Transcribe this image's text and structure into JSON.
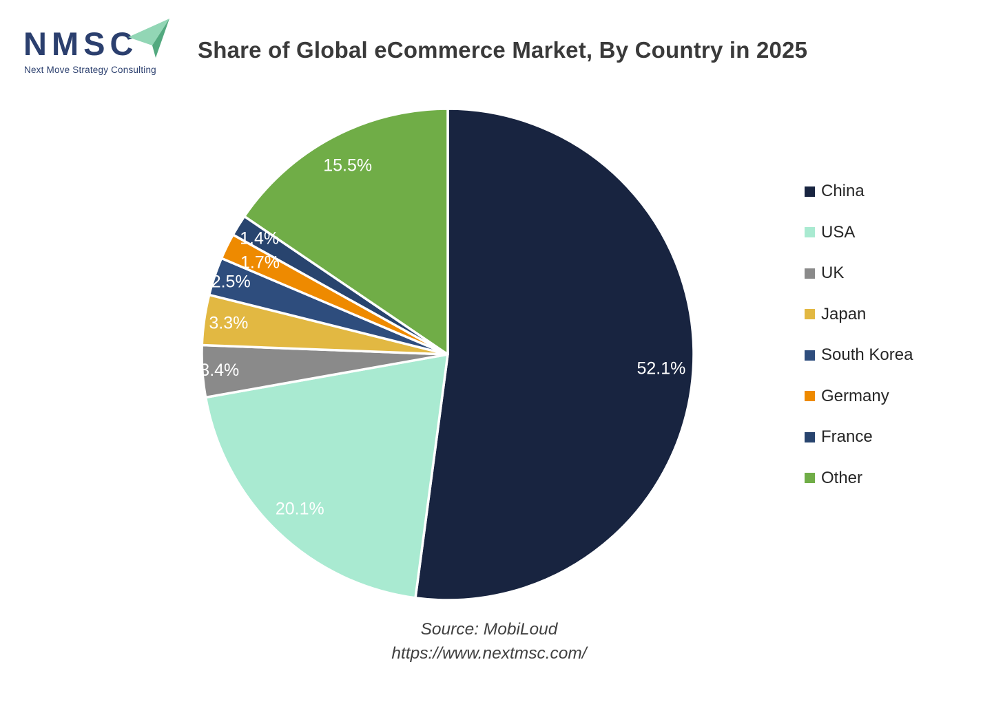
{
  "logo": {
    "acronym": "NMSC",
    "tagline": "Next Move Strategy Consulting",
    "text_color": "#2B3F6E",
    "arrow_light_color": "#92D6B5",
    "arrow_dark_color": "#53A97F"
  },
  "header": {
    "title": "Share of Global eCommerce Market, By Country in 2025"
  },
  "source": {
    "line1": "Source: MobiLoud",
    "line2": "https://www.nextmsc.com/"
  },
  "chart_data": {
    "type": "pie",
    "title": "Share of Global eCommerce Market, By Country in 2025",
    "categories": [
      "China",
      "USA",
      "UK",
      "Japan",
      "South Korea",
      "Germany",
      "France",
      "Other"
    ],
    "values": [
      52.1,
      20.1,
      3.4,
      3.3,
      2.5,
      1.7,
      1.4,
      15.5
    ],
    "labels": [
      "52.1%",
      "20.1%",
      "3.4%",
      "3.3%",
      "2.5%",
      "1.7%",
      "1.4%",
      "15.5%"
    ],
    "colors": [
      "#182440",
      "#A9EAD1",
      "#8A8A8A",
      "#E2B842",
      "#2E4D7D",
      "#EE8A00",
      "#28446E",
      "#70AD47"
    ],
    "label_color": "#FFFFFF",
    "slice_stroke": "#FFFFFF",
    "start_angle_deg": 0,
    "direction": "clockwise",
    "legend_position": "right",
    "grid": false,
    "label_radius_fractions": [
      0.87,
      0.87,
      0.93,
      0.9,
      0.93,
      0.85,
      0.9,
      0.87
    ]
  }
}
